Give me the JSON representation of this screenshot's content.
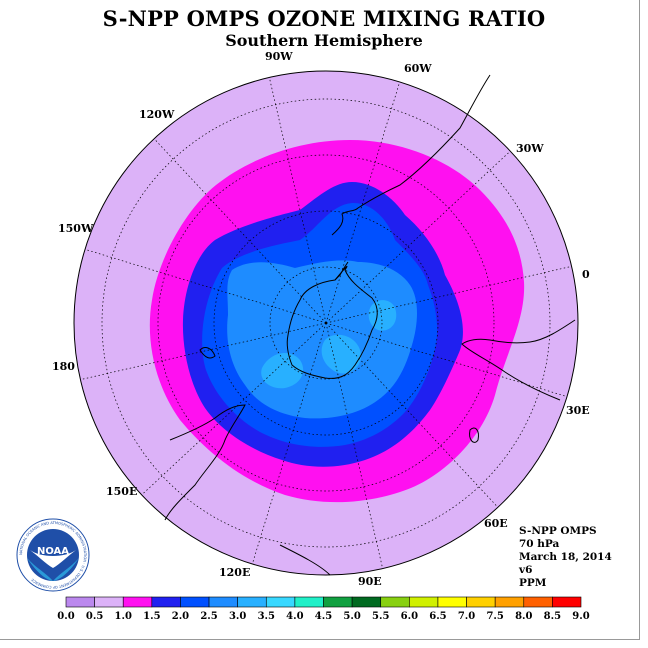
{
  "title": "S-NPP OMPS OZONE MIXING RATIO",
  "subtitle": "Southern Hemisphere",
  "longitude_labels": {
    "w90": "90W",
    "w60": "60W",
    "w30": "30W",
    "zero": "0",
    "w120": "120W",
    "w150": "150W",
    "d180": "180",
    "e30": "30E",
    "e60": "60E",
    "e90": "90E",
    "e120": "120E",
    "e150": "150E"
  },
  "info": {
    "instrument": "S-NPP OMPS",
    "level": "70 hPa",
    "date": "March 18, 2014",
    "version": "v6",
    "units": "PPM"
  },
  "logo": {
    "name": "NOAA",
    "ring_text": "NATIONAL OCEANIC AND ATMOSPHERIC ADMINISTRATION · U.S. DEPARTMENT OF COMMERCE"
  },
  "colorbar": {
    "labels": [
      "0.0",
      "0.5",
      "1.0",
      "1.5",
      "2.0",
      "2.5",
      "3.0",
      "3.5",
      "4.0",
      "4.5",
      "5.0",
      "5.5",
      "6.0",
      "6.5",
      "7.0",
      "7.5",
      "8.0",
      "8.5",
      "9.0"
    ],
    "colors": [
      "#bb88ee",
      "#dcb2f8",
      "#ff10f0",
      "#2020f0",
      "#0050ff",
      "#1e8cff",
      "#28b0ff",
      "#38d8ff",
      "#20f0c8",
      "#10a040",
      "#006a20",
      "#88d010",
      "#d0f000",
      "#ffff00",
      "#ffd000",
      "#ffa000",
      "#ff6000",
      "#ff0000",
      "#8b5a2b"
    ]
  },
  "map_colors": {
    "outer": "#dcb2f8",
    "band_1_0": "#ff10f0",
    "band_1_5": "#2020f0",
    "band_2_0": "#0050ff",
    "band_2_5": "#1e8cff",
    "band_3_0": "#28b0ff"
  }
}
